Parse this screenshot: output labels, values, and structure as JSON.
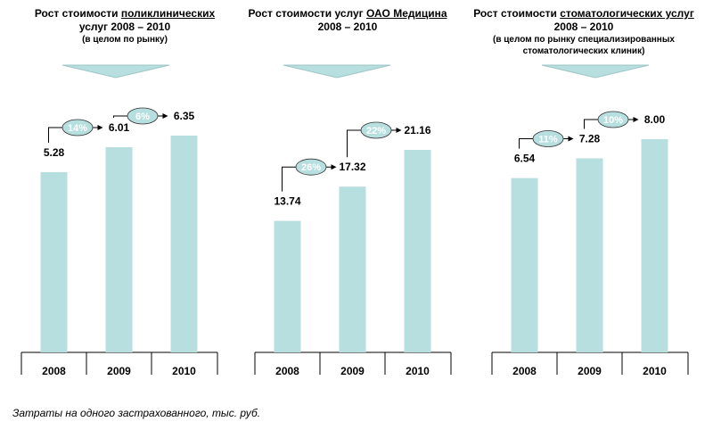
{
  "footnote": "Затраты на одного застрахованного, тыс. руб.",
  "colors": {
    "bar": "#b7dfe0",
    "bar_edge": "#9fc6c6",
    "pill": "#b7dfe0",
    "pill_text": "#ffffff",
    "arrow": "#000000"
  },
  "chart_data": [
    {
      "type": "bar",
      "title_pre": "Рост стоимости ",
      "title_u": "поликлинических",
      "title_post": "услуг 2008 – 2010",
      "subtitle": "(в целом по рынку)",
      "categories": [
        "2008",
        "2009",
        "2010"
      ],
      "values": [
        5.28,
        6.01,
        6.35
      ],
      "value_labels": [
        "5.28",
        "6.01",
        "6.35"
      ],
      "growth": [
        "14%",
        "6%"
      ]
    },
    {
      "type": "bar",
      "title_pre": "Рост стоимости услуг ",
      "title_u": "ОАО Медицина",
      "title_post": "2008 – 2010",
      "subtitle": "",
      "categories": [
        "2008",
        "2009",
        "2010"
      ],
      "values": [
        13.74,
        17.32,
        21.16
      ],
      "value_labels": [
        "13.74",
        "17.32",
        "21.16"
      ],
      "growth": [
        "26%",
        "22%"
      ]
    },
    {
      "type": "bar",
      "title_pre": "Рост стоимости ",
      "title_u": "стоматологических услуг",
      "title_post": "2008 – 2010",
      "subtitle": "(в целом по рынку специализированных стоматологических клиник)",
      "categories": [
        "2008",
        "2009",
        "2010"
      ],
      "values": [
        6.54,
        7.28,
        8.0
      ],
      "value_labels": [
        "6.54",
        "7.28",
        "8.00"
      ],
      "growth": [
        "11%",
        "10%"
      ]
    }
  ]
}
